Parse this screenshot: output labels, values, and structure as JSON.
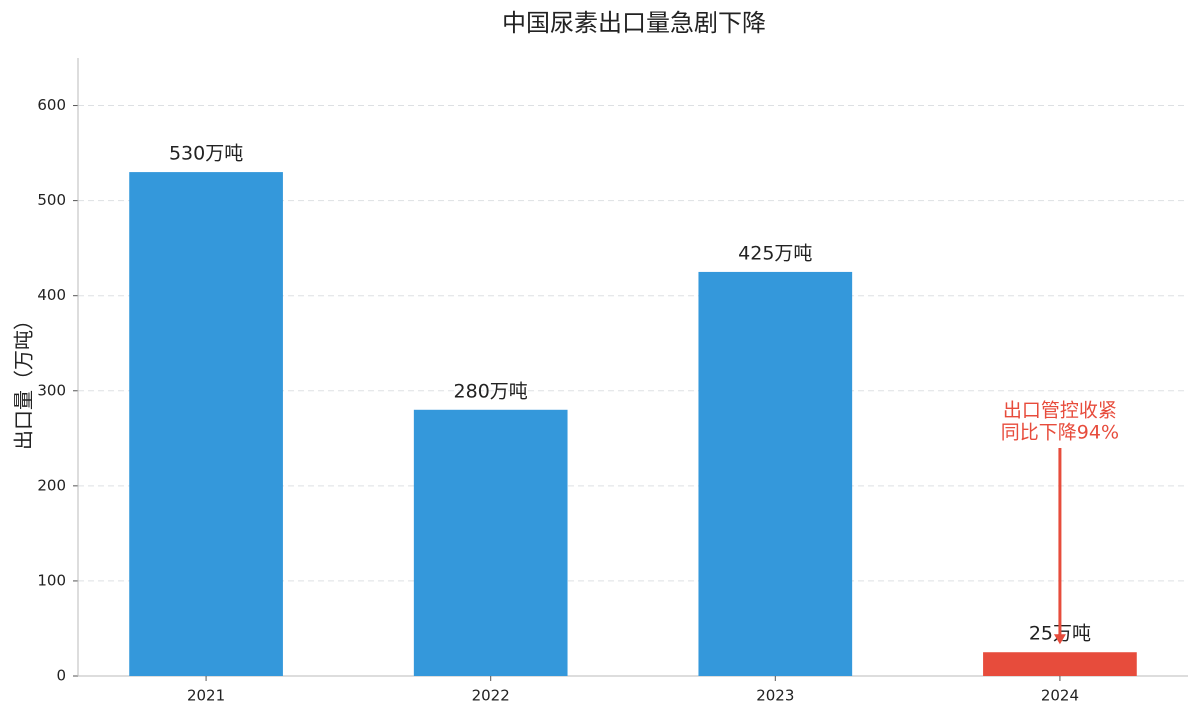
{
  "chart_data": {
    "type": "bar",
    "title": "中国尿素出口量急剧下降",
    "y_label": "出口量（万吨）",
    "categories": [
      "2021",
      "2022",
      "2023",
      "2024"
    ],
    "values": [
      530,
      280,
      425,
      25
    ],
    "value_labels": [
      "530万吨",
      "280万吨",
      "425万吨",
      "25万吨"
    ],
    "colors": [
      "#3498db",
      "#3498db",
      "#3498db",
      "#e74c3c"
    ],
    "ylim": [
      0,
      650
    ],
    "yticks": [
      0,
      100,
      200,
      300,
      400,
      500,
      600
    ],
    "grid": true,
    "annotation": {
      "lines": [
        "出口管控收紧",
        "同比下降94%"
      ],
      "color": "#e74c3c"
    }
  }
}
